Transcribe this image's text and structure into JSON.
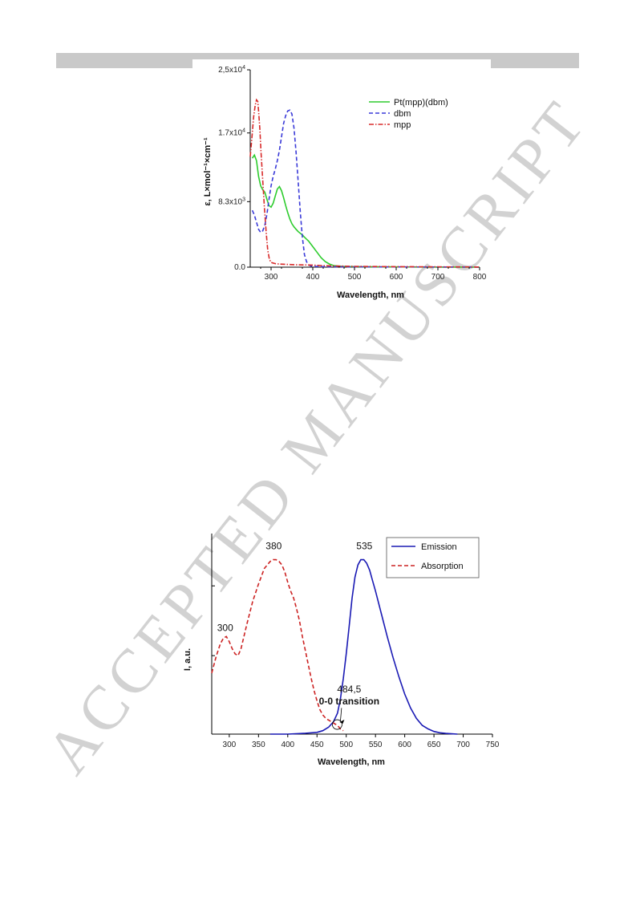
{
  "watermark": "ACCEPTED MANUSCRIPT",
  "chart_data": [
    {
      "type": "line",
      "xlabel": "Wavelength, nm",
      "ylabel": "ε, L×mol⁻¹×cm⁻¹",
      "xlim": [
        250,
        800
      ],
      "ylim": [
        0,
        25000
      ],
      "x_ticks": [
        300,
        400,
        500,
        600,
        700,
        800
      ],
      "x_tick_labels": [
        "300",
        "400",
        "500",
        "600",
        "700",
        "800"
      ],
      "y_ticks": [
        0,
        8300,
        17000,
        25000
      ],
      "y_tick_labels": [
        {
          "m": "0.0",
          "e": ""
        },
        {
          "m": "8.3x10",
          "e": "3"
        },
        {
          "m": "1.7x10",
          "e": "4"
        },
        {
          "m": "2,5x10",
          "e": "4"
        }
      ],
      "legend_position": "top-right",
      "series": [
        {
          "name": "Pt(mpp)(dbm)",
          "color": "#2ecc2e",
          "style": "solid",
          "x": [
            255,
            260,
            265,
            270,
            275,
            280,
            285,
            290,
            295,
            300,
            305,
            310,
            315,
            320,
            325,
            330,
            335,
            340,
            345,
            350,
            355,
            360,
            365,
            370,
            375,
            380,
            390,
            400,
            410,
            420,
            430,
            440,
            450,
            470,
            500,
            550,
            600,
            650,
            700,
            750,
            800
          ],
          "y": [
            13800,
            14200,
            13500,
            11500,
            10300,
            9800,
            9500,
            8600,
            7800,
            7600,
            8100,
            9000,
            9900,
            10200,
            9700,
            8800,
            7800,
            6900,
            6100,
            5500,
            5100,
            4800,
            4500,
            4300,
            4100,
            3800,
            3300,
            2600,
            1900,
            1200,
            700,
            400,
            200,
            100,
            60,
            40,
            30,
            20,
            15,
            10,
            0
          ]
        },
        {
          "name": "dbm",
          "color": "#3a3ad8",
          "style": "dashed",
          "x": [
            255,
            260,
            265,
            270,
            275,
            280,
            285,
            290,
            295,
            300,
            305,
            310,
            315,
            320,
            325,
            330,
            335,
            340,
            345,
            350,
            355,
            360,
            365,
            370,
            375,
            380,
            385,
            390,
            395,
            400,
            410,
            430,
            450,
            500,
            600,
            700,
            800
          ],
          "y": [
            7200,
            6600,
            5700,
            4800,
            4400,
            4600,
            5300,
            6700,
            8600,
            10300,
            11500,
            12400,
            13500,
            14800,
            16500,
            18200,
            19200,
            19800,
            19900,
            19400,
            17600,
            14500,
            10800,
            7000,
            3800,
            1600,
            700,
            300,
            150,
            100,
            80,
            60,
            50,
            40,
            30,
            20,
            10
          ]
        },
        {
          "name": "mpp",
          "color": "#d82a2a",
          "style": "dashdot",
          "x": [
            250,
            255,
            258,
            262,
            265,
            268,
            270,
            273,
            276,
            280,
            284,
            288,
            292,
            296,
            300,
            310,
            320,
            340,
            360,
            380,
            400,
            420,
            450,
            500,
            600,
            700,
            800
          ],
          "y": [
            14000,
            17000,
            19000,
            20500,
            21200,
            21000,
            19800,
            17500,
            14500,
            11000,
            7500,
            4500,
            2200,
            1000,
            600,
            450,
            400,
            350,
            300,
            280,
            260,
            200,
            150,
            100,
            60,
            40,
            20
          ]
        }
      ]
    },
    {
      "type": "line",
      "xlabel": "Wavelength, nm",
      "ylabel": "I, a.u.",
      "xlim": [
        270,
        750
      ],
      "ylim": [
        0,
        1.15
      ],
      "x_ticks": [
        300,
        350,
        400,
        450,
        500,
        550,
        600,
        650,
        700,
        750
      ],
      "x_tick_labels": [
        "300",
        "350",
        "400",
        "450",
        "500",
        "550",
        "600",
        "650",
        "700",
        "750"
      ],
      "legend_position": "top-right",
      "annotations": [
        {
          "text": "300",
          "x": 293,
          "y": 0.59
        },
        {
          "text": "380",
          "x": 376,
          "y": 1.06
        },
        {
          "text": "535",
          "x": 531,
          "y": 1.06
        },
        {
          "text": "484,5",
          "x": 505,
          "y": 0.24
        },
        {
          "text": "0-0 transition",
          "x": 505,
          "y": 0.17
        }
      ],
      "series": [
        {
          "name": "Emission",
          "color": "#1a1ab4",
          "style": "solid",
          "x": [
            370,
            400,
            430,
            450,
            460,
            470,
            478,
            485,
            490,
            495,
            500,
            505,
            510,
            515,
            520,
            525,
            530,
            535,
            540,
            545,
            550,
            560,
            570,
            580,
            590,
            600,
            610,
            620,
            630,
            640,
            650,
            660,
            670,
            680,
            690
          ],
          "y": [
            0,
            0,
            0.005,
            0.01,
            0.02,
            0.04,
            0.07,
            0.12,
            0.2,
            0.32,
            0.46,
            0.62,
            0.78,
            0.9,
            0.97,
            1.0,
            1.0,
            0.98,
            0.94,
            0.88,
            0.82,
            0.69,
            0.56,
            0.44,
            0.33,
            0.23,
            0.15,
            0.09,
            0.05,
            0.03,
            0.015,
            0.008,
            0.004,
            0.002,
            0
          ]
        },
        {
          "name": "Absorption",
          "color": "#cc2222",
          "style": "dashed",
          "x": [
            270,
            278,
            285,
            290,
            295,
            300,
            305,
            310,
            315,
            320,
            330,
            340,
            350,
            360,
            370,
            375,
            380,
            385,
            390,
            395,
            400,
            405,
            410,
            415,
            420,
            425,
            430,
            435,
            440,
            445,
            450,
            455,
            460,
            465,
            470,
            475,
            480,
            485,
            490,
            495
          ],
          "y": [
            0.35,
            0.45,
            0.52,
            0.55,
            0.56,
            0.53,
            0.49,
            0.46,
            0.45,
            0.49,
            0.63,
            0.76,
            0.86,
            0.95,
            0.99,
            1.0,
            1.0,
            0.99,
            0.97,
            0.93,
            0.87,
            0.82,
            0.78,
            0.72,
            0.65,
            0.56,
            0.48,
            0.4,
            0.32,
            0.25,
            0.19,
            0.14,
            0.11,
            0.09,
            0.08,
            0.07,
            0.06,
            0.05,
            0.03,
            0.02
          ]
        }
      ]
    }
  ]
}
